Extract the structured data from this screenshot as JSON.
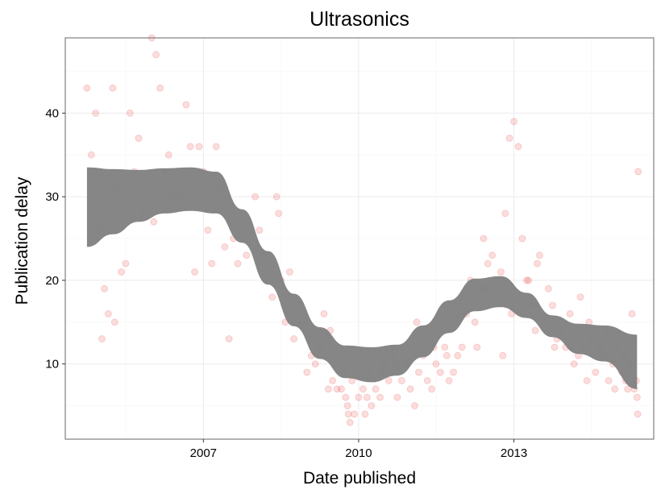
{
  "chart_data": {
    "type": "scatter",
    "title": "Ultrasonics",
    "xlabel": "Date published",
    "ylabel": "Publication delay",
    "x_ticks": [
      "2007",
      "2010",
      "2013"
    ],
    "y_ticks": [
      "10",
      "20",
      "30",
      "40"
    ],
    "x_tick_values": [
      "2007-01-01",
      "2010-01-01",
      "2013-01-01"
    ],
    "y_tick_values": [
      10,
      20,
      30,
      40
    ],
    "xlim": [
      "2004-05-01",
      "2015-09-15"
    ],
    "ylim": [
      1,
      49
    ],
    "grid": true,
    "legend": "none",
    "colors": {
      "points": "#e31a1c",
      "smooth_band": "#808080",
      "grid_major": "#ebebeb",
      "grid_minor": "#f5f5f5",
      "panel_border": "#7f7f7f"
    },
    "series": [
      {
        "kind": "points",
        "opacity": 0.15,
        "x": [
          "2004-10-01",
          "2004-11-01",
          "2004-12-01",
          "2004-12-15",
          "2005-01-01",
          "2005-02-01",
          "2005-03-01",
          "2005-04-01",
          "2005-04-15",
          "2005-06-01",
          "2005-08-01",
          "2005-09-01",
          "2005-10-01",
          "2005-11-01",
          "2006-01-01",
          "2006-02-01",
          "2006-03-01",
          "2006-05-01",
          "2006-06-01",
          "2006-08-01",
          "2006-09-01",
          "2006-10-01",
          "2006-12-01",
          "2007-01-01",
          "2007-02-01",
          "2007-03-01",
          "2007-05-01",
          "2007-06-01",
          "2007-08-01",
          "2007-09-01",
          "2007-11-01",
          "2008-01-01",
          "2008-02-01",
          "2008-03-01",
          "2008-05-01",
          "2008-06-01",
          "2008-07-01",
          "2008-08-01",
          "2008-09-01",
          "2008-10-01",
          "2008-12-01",
          "2009-01-01",
          "2009-02-01",
          "2009-03-01",
          "2009-04-01",
          "2009-05-01",
          "2009-06-01",
          "2009-07-01",
          "2009-08-01",
          "2009-09-01",
          "2009-10-01",
          "2009-10-15",
          "2009-11-01",
          "2009-12-01",
          "2010-01-01",
          "2010-02-01",
          "2010-03-01",
          "2010-04-01",
          "2010-05-01",
          "2010-06-01",
          "2010-07-01",
          "2010-08-01",
          "2010-09-01",
          "2010-10-01",
          "2010-11-01",
          "2010-12-01",
          "2011-01-01",
          "2011-02-01",
          "2011-03-01",
          "2011-04-01",
          "2011-05-01",
          "2011-06-01",
          "2011-07-01",
          "2011-08-01",
          "2011-09-01",
          "2011-10-01",
          "2011-11-01",
          "2011-12-01",
          "2012-01-01",
          "2012-02-01",
          "2012-03-01",
          "2012-04-01",
          "2012-05-01",
          "2012-06-01",
          "2012-07-01",
          "2012-08-01",
          "2012-09-01",
          "2012-10-01",
          "2012-11-01",
          "2012-12-01",
          "2013-01-01",
          "2013-02-01",
          "2013-03-01",
          "2013-04-01",
          "2013-05-01",
          "2013-06-01",
          "2013-07-01",
          "2013-08-01",
          "2013-09-01",
          "2013-10-01",
          "2013-11-01",
          "2013-12-01",
          "2014-01-01",
          "2014-02-01",
          "2014-03-01",
          "2014-04-01",
          "2014-05-01",
          "2014-06-01",
          "2014-07-01",
          "2014-08-01",
          "2014-09-01",
          "2014-10-01",
          "2014-11-01",
          "2014-12-01",
          "2015-01-01",
          "2015-02-01",
          "2015-03-01",
          "2015-04-01",
          "2015-05-01",
          "2015-05-15",
          "2015-05-20",
          "2015-05-25",
          "2005-01-15",
          "2005-07-01",
          "2006-01-15",
          "2006-11-01",
          "2007-07-01",
          "2008-04-01",
          "2008-11-01",
          "2009-09-15",
          "2009-11-15",
          "2010-03-15",
          "2010-09-15",
          "2011-02-15",
          "2011-09-15",
          "2012-04-15",
          "2012-10-15",
          "2013-04-15",
          "2013-10-15",
          "2014-04-15",
          "2014-10-15",
          "2015-02-15",
          "2005-05-01",
          "2006-04-01",
          "2007-04-01",
          "2008-06-15",
          "2009-06-15",
          "2010-06-15",
          "2011-06-15",
          "2012-06-15",
          "2013-06-15",
          "2014-06-15",
          "2015-04-15",
          "2009-10-20",
          "2010-02-15",
          "2011-12-15",
          "2012-12-15",
          "2014-12-15",
          "2015-03-15",
          "2015-05-28"
        ],
        "y": [
          43,
          35,
          40,
          33,
          26,
          19,
          16,
          43,
          15,
          21,
          40,
          33,
          37,
          28,
          49,
          47,
          43,
          35,
          30,
          30,
          41,
          36,
          36,
          33,
          26,
          22,
          31,
          24,
          25,
          22,
          23,
          30,
          26,
          23,
          18,
          30,
          20,
          15,
          21,
          13,
          15,
          9,
          11,
          10,
          12,
          16,
          7,
          8,
          7,
          7,
          6,
          5,
          3,
          4,
          6,
          7,
          6,
          5,
          7,
          6,
          10,
          8,
          11,
          6,
          8,
          10,
          7,
          5,
          9,
          11,
          8,
          7,
          10,
          9,
          12,
          8,
          9,
          11,
          12,
          16,
          20,
          15,
          19,
          25,
          22,
          23,
          18,
          21,
          28,
          37,
          39,
          36,
          25,
          20,
          17,
          14,
          23,
          15,
          19,
          17,
          13,
          14,
          12,
          16,
          10,
          11,
          12,
          8,
          13,
          9,
          12,
          11,
          8,
          10,
          12,
          9,
          8,
          10,
          7,
          8,
          6,
          4,
          13,
          22,
          27,
          21,
          13,
          22,
          17,
          9,
          8,
          9,
          10,
          15,
          11,
          12,
          11,
          20,
          12,
          18,
          14,
          11,
          31,
          33,
          36,
          28,
          14,
          9,
          12,
          19,
          22,
          15,
          16,
          4,
          4,
          16,
          16,
          7,
          7,
          33
        ]
      },
      {
        "kind": "smooth_band",
        "x": [
          "2004-10-01",
          "2005-04-01",
          "2005-10-01",
          "2006-04-01",
          "2006-10-01",
          "2007-04-01",
          "2007-10-01",
          "2008-04-01",
          "2008-10-01",
          "2009-04-01",
          "2009-10-01",
          "2010-04-01",
          "2010-10-01",
          "2011-04-01",
          "2011-10-01",
          "2012-04-01",
          "2012-10-01",
          "2013-04-01",
          "2013-10-01",
          "2014-04-01",
          "2014-10-01",
          "2015-05-20"
        ],
        "lower": [
          24,
          25.5,
          27,
          28,
          28.3,
          28,
          24.5,
          19.5,
          14.5,
          10.6,
          8.3,
          7.8,
          8.6,
          10.8,
          13.7,
          16.3,
          16.8,
          15.5,
          13.2,
          11.2,
          10.3,
          7.0
        ],
        "upper": [
          33.5,
          33.3,
          33.2,
          33.4,
          33.5,
          33.0,
          28.5,
          23.5,
          18.4,
          14.4,
          12.2,
          12.0,
          12.3,
          14.6,
          17.6,
          20.2,
          20.5,
          18.5,
          15.8,
          14.8,
          14.6,
          13.5
        ]
      }
    ]
  }
}
